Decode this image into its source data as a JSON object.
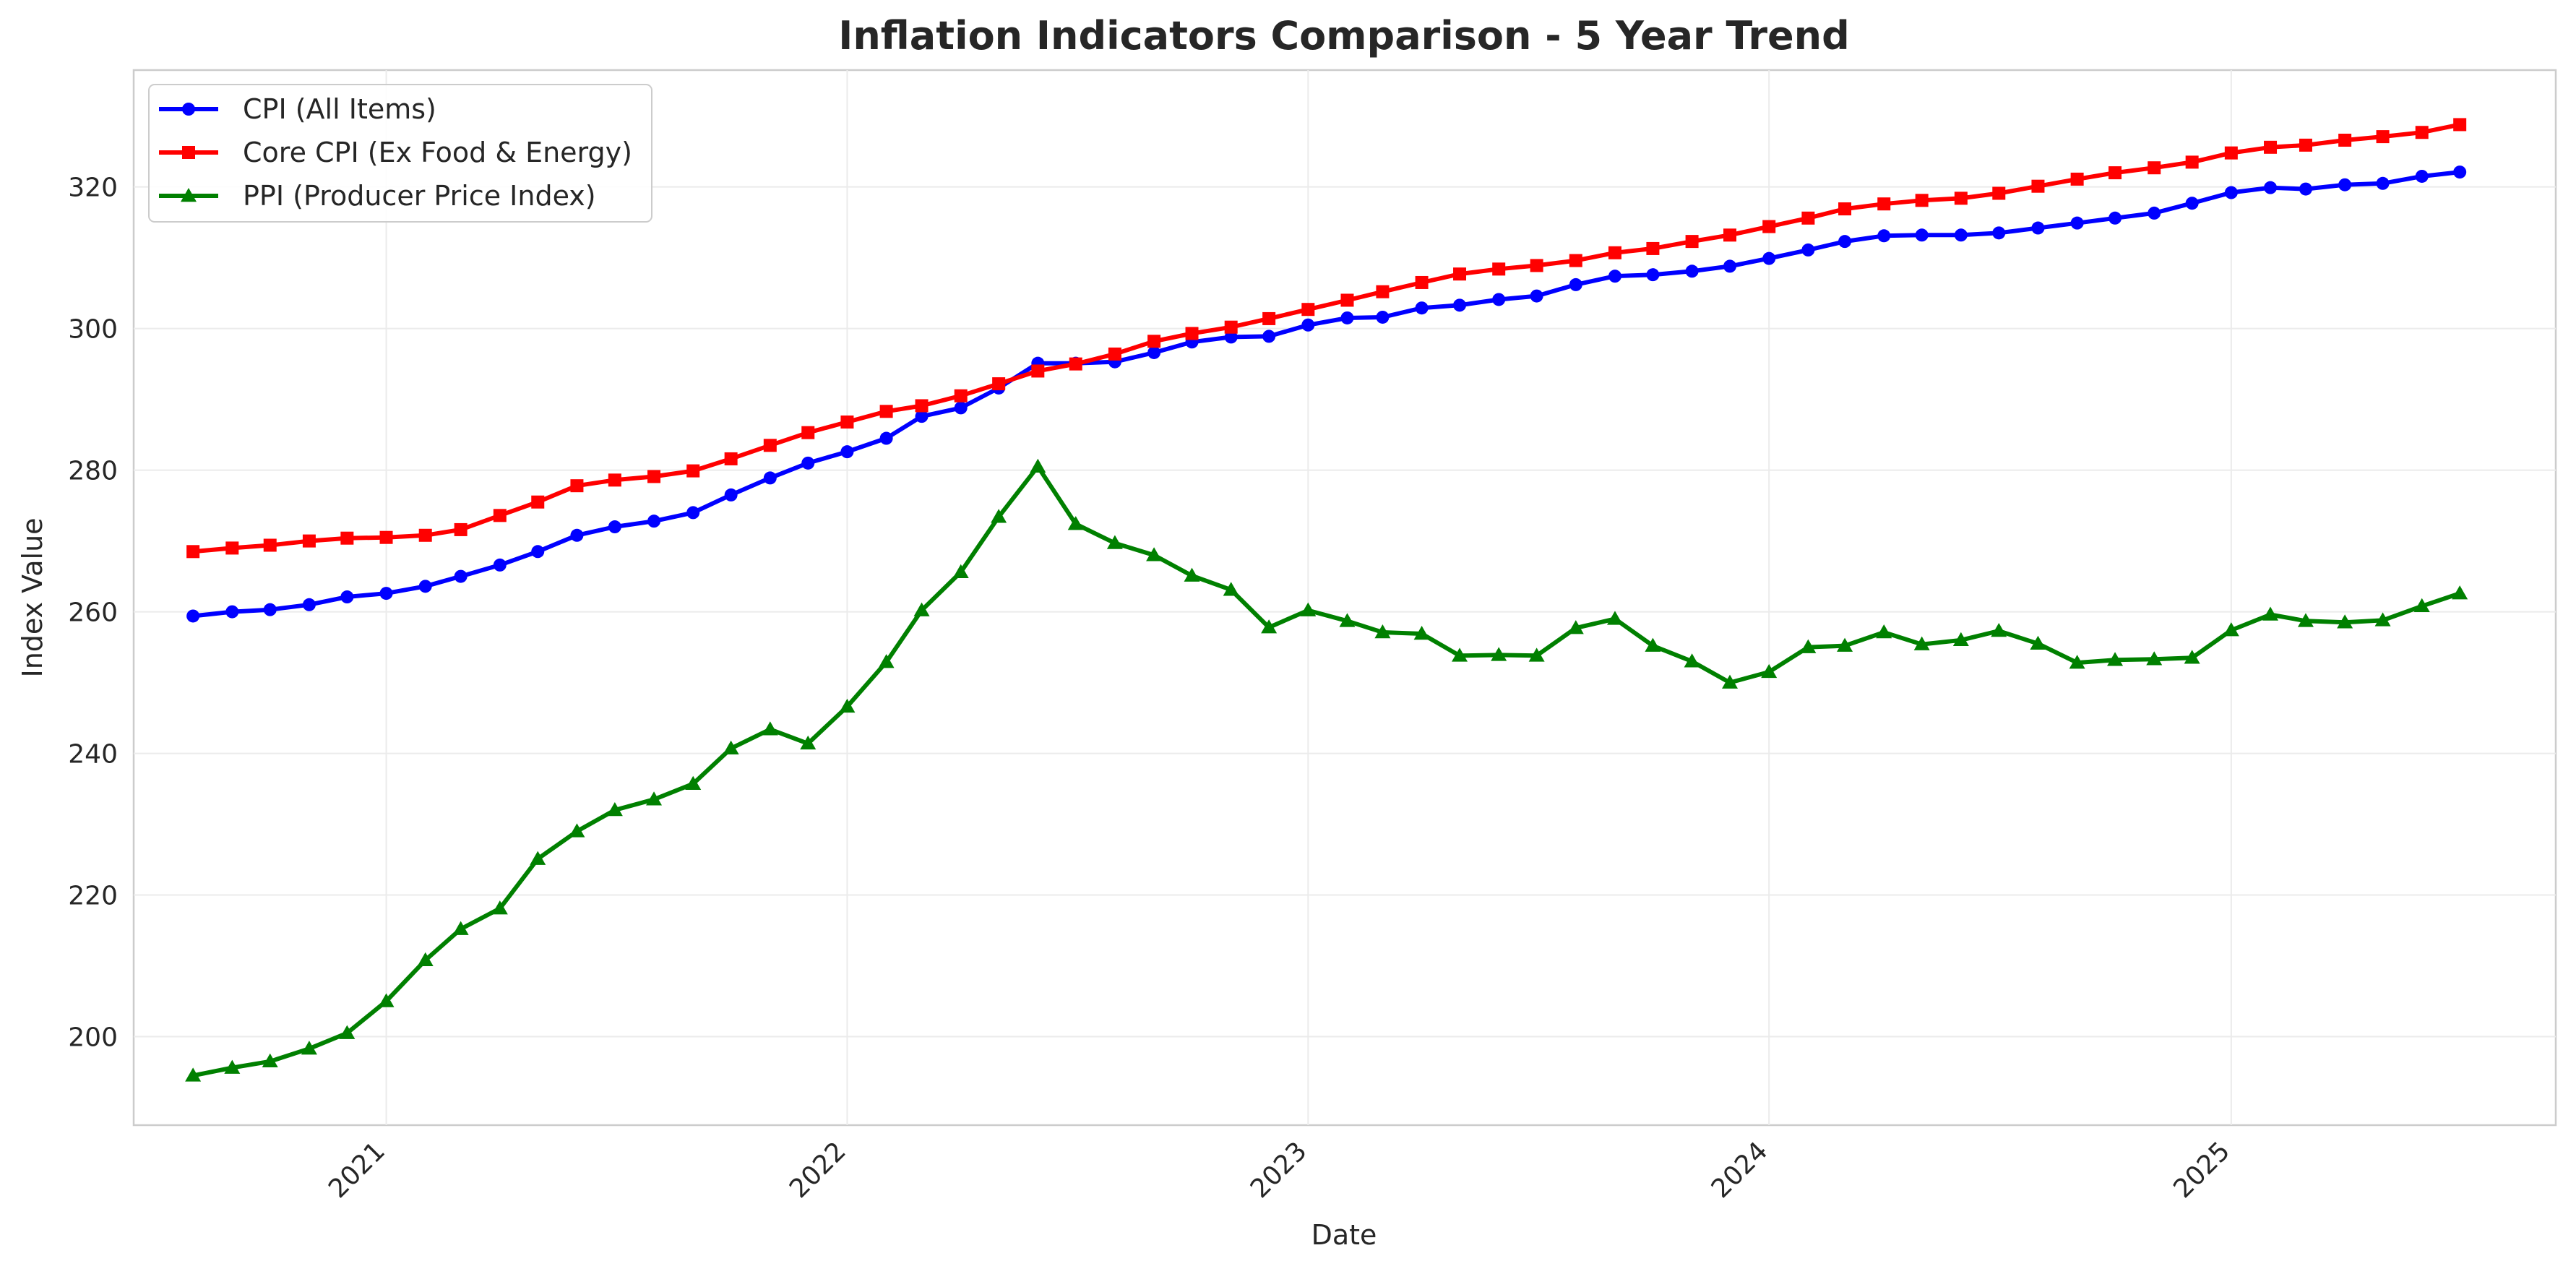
{
  "chart_data": {
    "type": "line",
    "title": "Inflation Indicators Comparison - 5 Year Trend",
    "xlabel": "Date",
    "ylabel": "Index Value",
    "x_start": "2020-08",
    "x_end": "2025-07",
    "xlim": [
      "2020-06-15",
      "2025-09-15"
    ],
    "ylim": [
      187.5,
      336.5
    ],
    "x_ticks": [
      "2021",
      "2022",
      "2023",
      "2024",
      "2025"
    ],
    "y_ticks": [
      200,
      220,
      240,
      260,
      280,
      300,
      320
    ],
    "grid": true,
    "legend_position": "top-left",
    "series": [
      {
        "name": "CPI (All Items)",
        "color": "#0000ff",
        "marker": "circle",
        "values": [
          259.4,
          260.0,
          260.3,
          261.0,
          262.1,
          262.6,
          263.6,
          265.0,
          266.6,
          268.5,
          270.8,
          272.0,
          272.8,
          274.0,
          276.5,
          278.9,
          281.0,
          282.6,
          284.5,
          287.6,
          288.8,
          291.6,
          295.1,
          295.1,
          295.3,
          296.6,
          298.1,
          298.8,
          298.9,
          300.5,
          301.5,
          301.6,
          302.9,
          303.3,
          304.1,
          304.6,
          306.2,
          307.4,
          307.6,
          308.1,
          308.8,
          309.9,
          311.1,
          312.3,
          313.1,
          313.2,
          313.2,
          313.5,
          314.2,
          314.9,
          315.6,
          316.3,
          317.7,
          319.2,
          319.9,
          319.7,
          320.3,
          320.5,
          321.5,
          322.1
        ]
      },
      {
        "name": "Core CPI (Ex Food & Energy)",
        "color": "#ff0000",
        "marker": "square",
        "values": [
          268.5,
          269.0,
          269.4,
          270.0,
          270.4,
          270.5,
          270.8,
          271.6,
          273.6,
          275.5,
          277.8,
          278.6,
          279.1,
          279.9,
          281.6,
          283.5,
          285.3,
          286.8,
          288.3,
          289.1,
          290.5,
          292.2,
          294.0,
          295.0,
          296.4,
          298.2,
          299.3,
          300.2,
          301.4,
          302.7,
          304.0,
          305.2,
          306.5,
          307.7,
          308.4,
          308.9,
          309.6,
          310.7,
          311.3,
          312.3,
          313.2,
          314.4,
          315.6,
          316.9,
          317.6,
          318.1,
          318.4,
          319.1,
          320.1,
          321.1,
          322.0,
          322.7,
          323.5,
          324.8,
          325.6,
          325.9,
          326.6,
          327.1,
          327.7,
          328.8
        ]
      },
      {
        "name": "PPI (Producer Price Index)",
        "color": "#008000",
        "marker": "triangle",
        "values": [
          194.5,
          195.6,
          196.5,
          198.3,
          200.5,
          205.0,
          210.8,
          215.2,
          218.1,
          225.1,
          229.0,
          232.0,
          233.5,
          235.7,
          240.7,
          243.4,
          241.4,
          246.6,
          252.9,
          260.2,
          265.6,
          273.4,
          280.5,
          272.4,
          269.7,
          268.0,
          265.1,
          263.1,
          257.8,
          260.2,
          258.7,
          257.1,
          256.9,
          253.8,
          253.9,
          253.8,
          257.7,
          259.0,
          255.2,
          253.0,
          250.0,
          251.5,
          255.0,
          255.2,
          257.1,
          255.4,
          256.0,
          257.3,
          255.5,
          252.8,
          253.2,
          253.3,
          253.5,
          257.4,
          259.6,
          258.7,
          258.5,
          258.8,
          260.8,
          262.6
        ]
      }
    ]
  }
}
